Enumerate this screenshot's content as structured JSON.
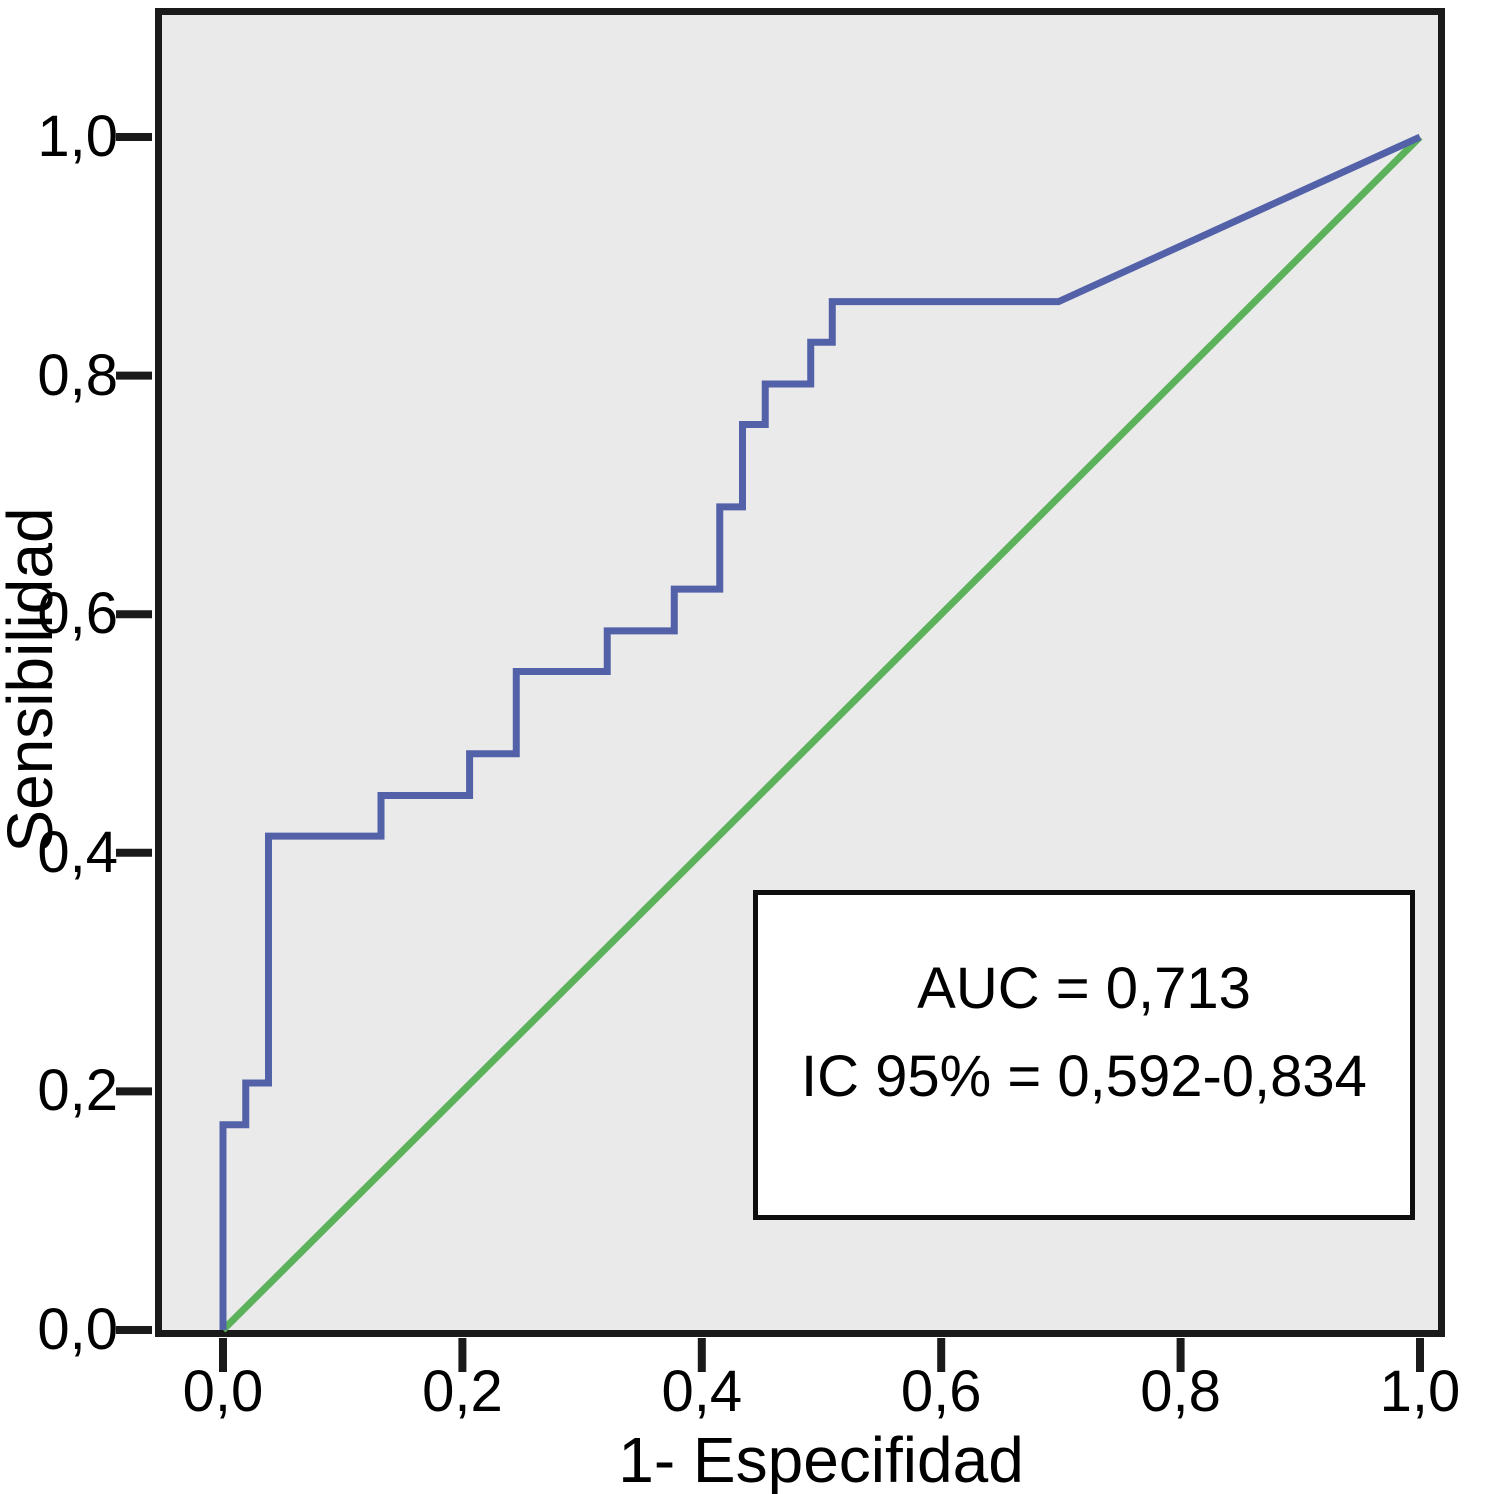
{
  "chart_data": {
    "type": "line",
    "subtype": "roc-curve",
    "title": "",
    "xlabel": "1- Especifidad",
    "ylabel": "Sensibilidad",
    "xlim": [
      0,
      1
    ],
    "ylim": [
      0,
      1
    ],
    "grid": false,
    "legend_position": "none",
    "plot_background": "#eaeaea",
    "frame_color": "#1a1a1a",
    "tick_values": [
      0,
      0.2,
      0.4,
      0.6,
      0.8,
      1.0
    ],
    "x_tick_labels": [
      "0,0",
      "0,2",
      "0,4",
      "0,6",
      "0,8",
      "1,0"
    ],
    "y_tick_labels": [
      "0,0",
      "0,2",
      "0,4",
      "0,6",
      "0,8",
      "1,0"
    ],
    "series": [
      {
        "name": "roc-curve",
        "color": "#5361a8",
        "points": [
          [
            0.0,
            0.0
          ],
          [
            0.0,
            0.172
          ],
          [
            0.019,
            0.172
          ],
          [
            0.019,
            0.207
          ],
          [
            0.038,
            0.207
          ],
          [
            0.038,
            0.414
          ],
          [
            0.132,
            0.414
          ],
          [
            0.132,
            0.448
          ],
          [
            0.206,
            0.448
          ],
          [
            0.206,
            0.483
          ],
          [
            0.245,
            0.483
          ],
          [
            0.245,
            0.552
          ],
          [
            0.321,
            0.552
          ],
          [
            0.321,
            0.586
          ],
          [
            0.377,
            0.586
          ],
          [
            0.377,
            0.621
          ],
          [
            0.415,
            0.621
          ],
          [
            0.415,
            0.69
          ],
          [
            0.434,
            0.69
          ],
          [
            0.434,
            0.759
          ],
          [
            0.453,
            0.759
          ],
          [
            0.453,
            0.793
          ],
          [
            0.491,
            0.793
          ],
          [
            0.491,
            0.828
          ],
          [
            0.509,
            0.828
          ],
          [
            0.509,
            0.862
          ],
          [
            0.698,
            0.862
          ],
          [
            1.0,
            1.0
          ]
        ]
      },
      {
        "name": "reference-diagonal",
        "color": "#5bb25a",
        "points": [
          [
            0,
            0
          ],
          [
            1,
            1
          ]
        ]
      }
    ],
    "annotation": {
      "line1": "AUC = 0,713",
      "line2": "IC 95% = 0,592-0,834",
      "auc_value": "0,713",
      "ic95_value": "0,592-0,834"
    }
  }
}
